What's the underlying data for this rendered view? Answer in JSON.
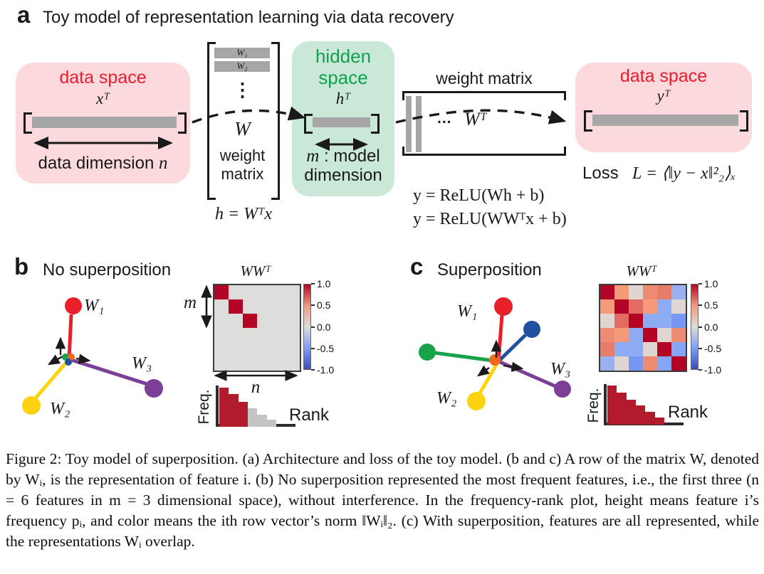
{
  "panel_a": {
    "label": "a",
    "title": "Toy model of representation learning via data recovery",
    "left_box": {
      "title": "data space",
      "vector": "xᵀ",
      "dim_text": "data dimension ",
      "dim_var": "n"
    },
    "w_matrix": {
      "row1": "W₁",
      "row2": "W₂",
      "dots": "⋮",
      "name": "W",
      "caption_line1": "weight",
      "caption_line2": "matrix",
      "equation": "h = Wᵀx"
    },
    "hidden_box": {
      "title_line1": "hidden",
      "title_line2": "space",
      "vector": "hᵀ",
      "dim_var": "m",
      "dim_rest": " : model",
      "dim_line2": "dimension"
    },
    "wt_matrix": {
      "title": "weight matrix",
      "dots": "...",
      "name": "Wᵀ"
    },
    "equation1": "y = ReLU(Wh + b)",
    "equation2": "y = ReLU(WWᵀx + b)",
    "right_box": {
      "title": "data space",
      "vector": "yᵀ"
    },
    "loss_label": "Loss",
    "loss_equation": "L = ⟨‖y − x‖²₂⟩ₓ"
  },
  "panel_b": {
    "label": "b",
    "title": "No superposition",
    "w1": "W₁",
    "w2": "W₂",
    "w3": "W₃",
    "heatmap_m": "m",
    "heatmap_n": "n"
  },
  "panel_c": {
    "label": "c",
    "title": "Superposition",
    "w1": "W₁",
    "w2": "W₂",
    "w3": "W₃"
  },
  "caption": "Figure 2: Toy model of superposition. (a) Architecture and loss of the toy model. (b and c) A row of the matrix W, denoted by Wᵢ, is the representation of feature i. (b) No superposition represented the most frequent features, i.e., the first three (n = 6 features in m = 3 dimensional space), without interference. In the frequency-rank plot, height means feature i’s frequency pᵢ, and color means the ith row vector’s norm ‖Wᵢ‖₂. (c) With superposition, features are all represented, while the representations Wᵢ overlap.",
  "colors": {
    "data_space_bg": "#fbd9dd",
    "data_space_text": "#ee1c2c",
    "hidden_space_bg": "#c9e8d7",
    "hidden_space_text": "#0fa14f",
    "vector_bar": "#a6a6a6",
    "crimson": "#b11b2c",
    "gray": "#c4c4c4",
    "w1_red": "#e82029",
    "w2_yellow": "#fdd20e",
    "w3_purple": "#7b3f98",
    "feature_green": "#18a34b",
    "feature_blue": "#21509f",
    "feature_orange": "#f2691e"
  },
  "chart_data": [
    {
      "type": "heatmap",
      "panel": "b",
      "title": "WWᵀ",
      "vmin": -1,
      "vmax": 1,
      "row_label": "m",
      "col_label": "n",
      "values": [
        [
          1,
          0,
          0,
          0,
          0,
          0
        ],
        [
          0,
          1,
          0,
          0,
          0,
          0
        ],
        [
          0,
          0,
          1,
          0,
          0,
          0
        ],
        [
          0,
          0,
          0,
          0,
          0,
          0
        ],
        [
          0,
          0,
          0,
          0,
          0,
          0
        ],
        [
          0,
          0,
          0,
          0,
          0,
          0
        ]
      ]
    },
    {
      "type": "heatmap",
      "panel": "c",
      "title": "WWᵀ",
      "vmin": -1,
      "vmax": 1,
      "values": [
        [
          1,
          0.5,
          0.05,
          0.55,
          0.6,
          -0.35
        ],
        [
          0.5,
          1,
          0.65,
          0.5,
          -0.4,
          0.05
        ],
        [
          0.05,
          0.65,
          1,
          -0.4,
          -0.4,
          -0.55
        ],
        [
          0.55,
          0.5,
          -0.4,
          1,
          0.05,
          0.55
        ],
        [
          0.6,
          -0.4,
          -0.4,
          0.05,
          1,
          -0.45
        ],
        [
          -0.35,
          0.05,
          -0.55,
          0.55,
          -0.45,
          1
        ]
      ]
    },
    {
      "type": "bar",
      "panel": "b",
      "xlabel": "Rank",
      "ylabel": "Freq.",
      "values": [
        1.0,
        0.83,
        0.64,
        0.48,
        0.31,
        0.19
      ],
      "bar_colors": [
        "crimson",
        "crimson",
        "crimson",
        "gray",
        "gray",
        "gray"
      ]
    },
    {
      "type": "bar",
      "panel": "c",
      "xlabel": "Rank",
      "ylabel": "Freq.",
      "values": [
        1.0,
        0.82,
        0.64,
        0.49,
        0.33,
        0.18
      ],
      "bar_colors": [
        "crimson",
        "crimson",
        "crimson",
        "crimson",
        "crimson",
        "crimson"
      ]
    },
    {
      "type": "colorbar",
      "ticks": [
        "1.0",
        "0.5",
        "0.0",
        "-0.5",
        "-1.0"
      ],
      "vmax": 1,
      "vmin": -1
    }
  ]
}
